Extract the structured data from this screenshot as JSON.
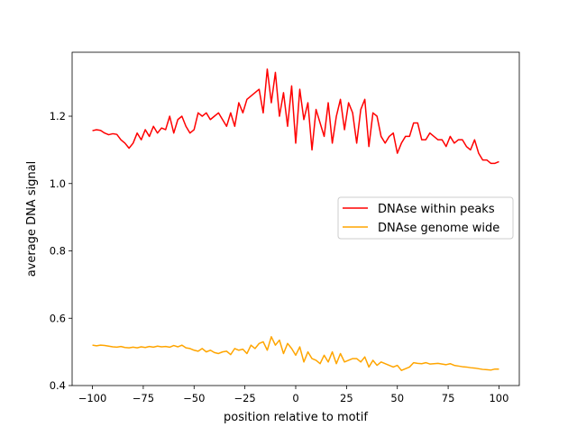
{
  "chart_data": {
    "type": "line",
    "title": "",
    "xlabel": "position relative to motif",
    "ylabel": "average DNA signal",
    "xlim": [
      -110,
      110
    ],
    "ylim": [
      0.4,
      1.39
    ],
    "xticks": [
      -100,
      -75,
      -50,
      -25,
      0,
      25,
      50,
      75,
      100
    ],
    "xtick_labels": [
      "−100",
      "−75",
      "−50",
      "−25",
      "0",
      "25",
      "50",
      "75",
      "100"
    ],
    "yticks": [
      0.4,
      0.6,
      0.8,
      1.0,
      1.2
    ],
    "ytick_labels": [
      "0.4",
      "0.6",
      "0.8",
      "1.0",
      "1.2"
    ],
    "grid": false,
    "legend_position": "center-right",
    "x_start": -100,
    "x_step": 2,
    "series": [
      {
        "name": "DNAse within peaks",
        "color": "#ff0000",
        "values": [
          1.157,
          1.16,
          1.158,
          1.15,
          1.145,
          1.148,
          1.146,
          1.13,
          1.12,
          1.105,
          1.12,
          1.15,
          1.13,
          1.16,
          1.14,
          1.17,
          1.15,
          1.165,
          1.16,
          1.2,
          1.15,
          1.19,
          1.2,
          1.17,
          1.15,
          1.16,
          1.21,
          1.2,
          1.21,
          1.19,
          1.2,
          1.21,
          1.19,
          1.17,
          1.21,
          1.17,
          1.24,
          1.21,
          1.25,
          1.26,
          1.27,
          1.28,
          1.21,
          1.34,
          1.24,
          1.33,
          1.2,
          1.27,
          1.17,
          1.29,
          1.12,
          1.28,
          1.19,
          1.24,
          1.1,
          1.22,
          1.18,
          1.14,
          1.24,
          1.12,
          1.2,
          1.25,
          1.16,
          1.24,
          1.21,
          1.12,
          1.22,
          1.25,
          1.11,
          1.21,
          1.2,
          1.14,
          1.12,
          1.14,
          1.15,
          1.09,
          1.12,
          1.14,
          1.14,
          1.18,
          1.18,
          1.13,
          1.13,
          1.15,
          1.14,
          1.13,
          1.13,
          1.11,
          1.14,
          1.12,
          1.13,
          1.13,
          1.11,
          1.1,
          1.13,
          1.09,
          1.07,
          1.07,
          1.06,
          1.06,
          1.065
        ]
      },
      {
        "name": "DNAse genome wide",
        "color": "#ffa500",
        "values": [
          0.52,
          0.518,
          0.52,
          0.519,
          0.517,
          0.515,
          0.514,
          0.516,
          0.513,
          0.512,
          0.514,
          0.512,
          0.515,
          0.513,
          0.516,
          0.514,
          0.517,
          0.515,
          0.516,
          0.514,
          0.519,
          0.515,
          0.52,
          0.512,
          0.51,
          0.505,
          0.502,
          0.51,
          0.5,
          0.505,
          0.498,
          0.495,
          0.5,
          0.502,
          0.492,
          0.51,
          0.505,
          0.508,
          0.495,
          0.52,
          0.51,
          0.525,
          0.53,
          0.505,
          0.545,
          0.52,
          0.535,
          0.495,
          0.525,
          0.51,
          0.49,
          0.515,
          0.47,
          0.5,
          0.48,
          0.475,
          0.465,
          0.49,
          0.47,
          0.5,
          0.465,
          0.495,
          0.47,
          0.475,
          0.48,
          0.48,
          0.47,
          0.485,
          0.455,
          0.475,
          0.46,
          0.47,
          0.465,
          0.46,
          0.455,
          0.46,
          0.445,
          0.45,
          0.455,
          0.468,
          0.466,
          0.465,
          0.468,
          0.464,
          0.465,
          0.466,
          0.464,
          0.462,
          0.465,
          0.46,
          0.458,
          0.456,
          0.455,
          0.453,
          0.452,
          0.45,
          0.448,
          0.447,
          0.446,
          0.449,
          0.449
        ]
      }
    ]
  }
}
